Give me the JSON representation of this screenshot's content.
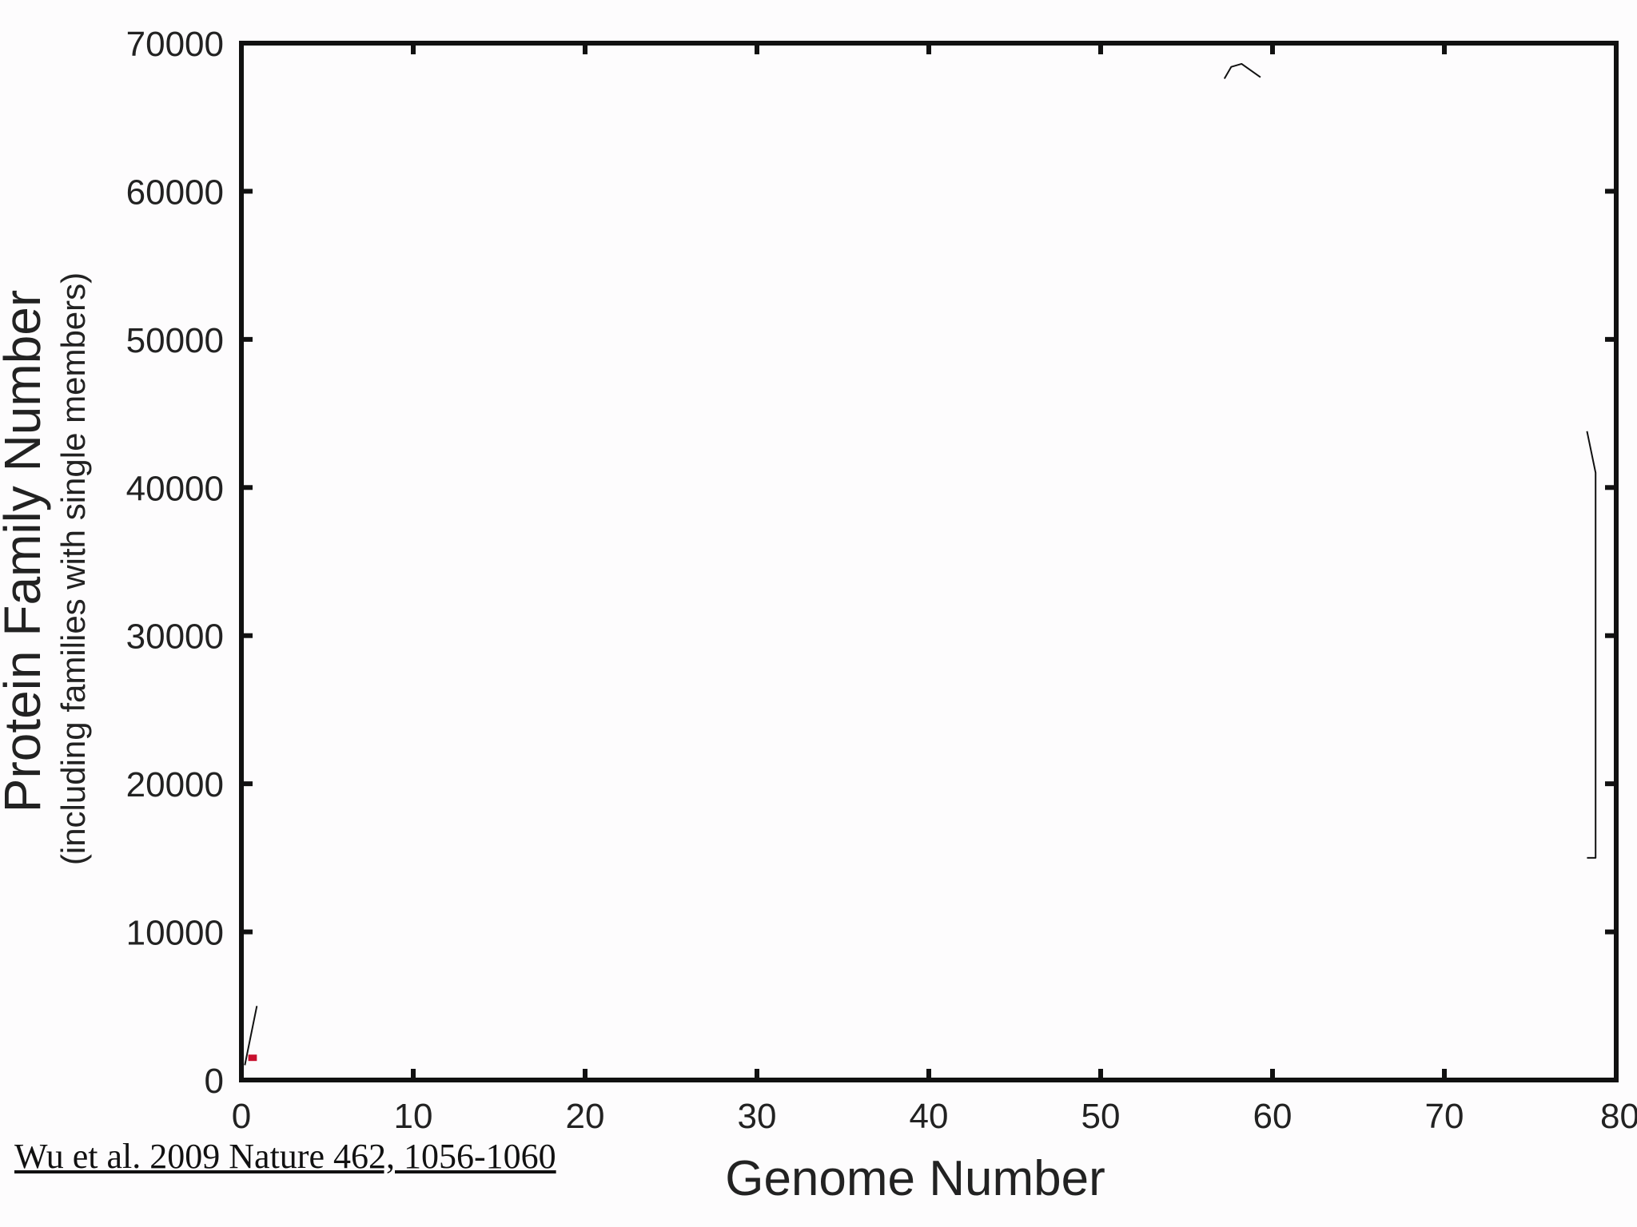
{
  "chart_data": {
    "type": "line",
    "title": "",
    "xlabel": "Genome Number",
    "ylabel": "Protein Family Number",
    "ylabel_sub": "(including families with single members)",
    "xlim": [
      0,
      80
    ],
    "ylim": [
      0,
      70000
    ],
    "x_ticks": [
      "0",
      "10",
      "20",
      "30",
      "40",
      "50",
      "60",
      "70",
      "80"
    ],
    "y_ticks": [
      "0",
      "10000",
      "20000",
      "30000",
      "40000",
      "50000",
      "60000",
      "70000"
    ],
    "grid": false,
    "series": [
      {
        "color": "#c8102e",
        "x": [
          0.4,
          0.9
        ],
        "y": [
          1500,
          1500
        ]
      }
    ],
    "annotations": [
      {
        "kind": "stroke",
        "x": [
          0.2,
          0.9
        ],
        "y": [
          1000,
          5000
        ]
      },
      {
        "kind": "stroke",
        "x": [
          57.2,
          57.6,
          58.2,
          59.3
        ],
        "y": [
          67600,
          68400,
          68600,
          67700
        ]
      },
      {
        "kind": "bracket",
        "x": [
          78.3,
          78.8,
          78.8,
          78.3
        ],
        "y": [
          43800,
          41000,
          15000,
          15000
        ]
      }
    ],
    "accent_color": "#c8102e"
  },
  "citation": "Wu et al. 2009 Nature 462, 1056-1060"
}
